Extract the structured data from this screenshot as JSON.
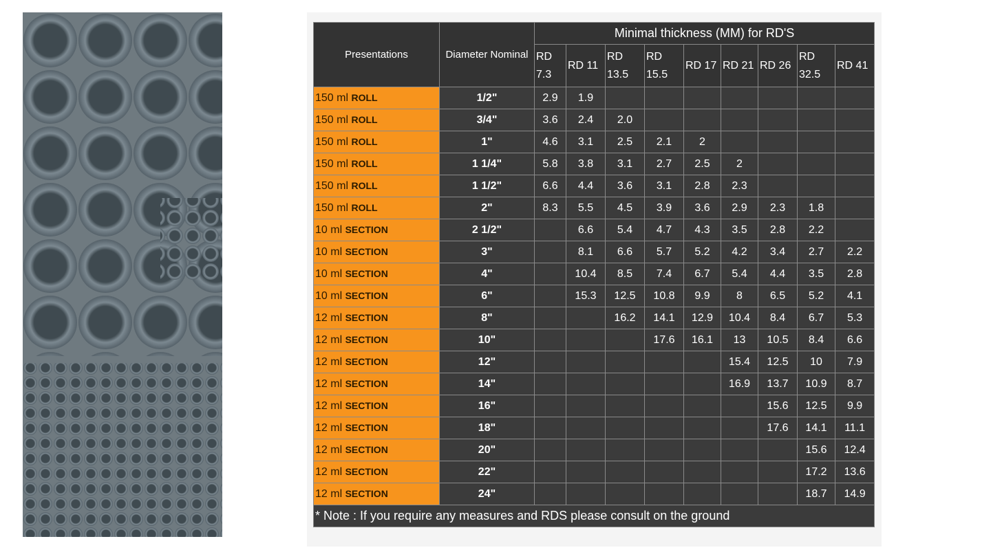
{
  "table": {
    "title": "Minimal thickness (MM) for RD'S",
    "headers": {
      "presentations": "Presentations",
      "diameter": "Diameter Nominal",
      "rd": [
        "RD 7.3",
        "RD 11",
        "RD 13.5",
        "RD 15.5",
        "RD 17",
        "RD 21",
        "RD 26",
        "RD 32.5",
        "RD 41"
      ]
    },
    "rows": [
      {
        "quantity": "150 ml",
        "unit": "ROLL",
        "diameter": "1/2\"",
        "cells": [
          "2.9",
          "1.9",
          null,
          null,
          null,
          null,
          null,
          null,
          null
        ]
      },
      {
        "quantity": "150 ml",
        "unit": "ROLL",
        "diameter": "3/4\"",
        "cells": [
          "3.6",
          "2.4",
          "2.0",
          null,
          null,
          null,
          null,
          null,
          null
        ]
      },
      {
        "quantity": "150 ml",
        "unit": "ROLL",
        "diameter": "1\"",
        "cells": [
          "4.6",
          "3.1",
          "2.5",
          "2.1",
          "2",
          null,
          null,
          null,
          null
        ]
      },
      {
        "quantity": "150 ml",
        "unit": "ROLL",
        "diameter": "1 1/4\"",
        "cells": [
          "5.8",
          "3.8",
          "3.1",
          "2.7",
          "2.5",
          "2",
          null,
          null,
          null
        ]
      },
      {
        "quantity": "150 ml",
        "unit": "ROLL",
        "diameter": "1 1/2\"",
        "cells": [
          "6.6",
          "4.4",
          "3.6",
          "3.1",
          "2.8",
          "2.3",
          null,
          null,
          null
        ]
      },
      {
        "quantity": "150 ml",
        "unit": "ROLL",
        "diameter": "2\"",
        "cells": [
          "8.3",
          "5.5",
          "4.5",
          "3.9",
          "3.6",
          "2.9",
          "2.3",
          "1.8",
          null
        ]
      },
      {
        "quantity": "10 ml",
        "unit": "SECTION",
        "diameter": "2 1/2\"",
        "cells": [
          null,
          "6.6",
          "5.4",
          "4.7",
          "4.3",
          "3.5",
          "2.8",
          "2.2",
          null
        ]
      },
      {
        "quantity": "10 ml",
        "unit": "SECTION",
        "diameter": "3\"",
        "cells": [
          null,
          "8.1",
          "6.6",
          "5.7",
          "5.2",
          "4.2",
          "3.4",
          "2.7",
          "2.2"
        ]
      },
      {
        "quantity": "10 ml",
        "unit": "SECTION",
        "diameter": "4\"",
        "cells": [
          null,
          "10.4",
          "8.5",
          "7.4",
          "6.7",
          "5.4",
          "4.4",
          "3.5",
          "2.8"
        ]
      },
      {
        "quantity": "10 ml",
        "unit": "SECTION",
        "diameter": "6\"",
        "cells": [
          null,
          "15.3",
          "12.5",
          "10.8",
          "9.9",
          "8",
          "6.5",
          "5.2",
          "4.1"
        ]
      },
      {
        "quantity": "12 ml",
        "unit": "SECTION",
        "diameter": "8\"",
        "cells": [
          null,
          null,
          "16.2",
          "14.1",
          "12.9",
          "10.4",
          "8.4",
          "6.7",
          "5.3"
        ]
      },
      {
        "quantity": "12 ml",
        "unit": "SECTION",
        "diameter": "10\"",
        "cells": [
          null,
          null,
          null,
          "17.6",
          "16.1",
          "13",
          "10.5",
          "8.4",
          "6.6"
        ]
      },
      {
        "quantity": "12 ml",
        "unit": "SECTION",
        "diameter": "12\"",
        "cells": [
          null,
          null,
          null,
          null,
          null,
          "15.4",
          "12.5",
          "10",
          "7.9"
        ]
      },
      {
        "quantity": "12 ml",
        "unit": "SECTION",
        "diameter": "14\"",
        "cells": [
          null,
          null,
          null,
          null,
          null,
          "16.9",
          "13.7",
          "10.9",
          "8.7"
        ]
      },
      {
        "quantity": "12 ml",
        "unit": "SECTION",
        "diameter": "16\"",
        "cells": [
          null,
          null,
          null,
          null,
          null,
          null,
          "15.6",
          "12.5",
          "9.9"
        ]
      },
      {
        "quantity": "12 ml",
        "unit": "SECTION",
        "diameter": "18\"",
        "cells": [
          null,
          null,
          null,
          null,
          null,
          null,
          "17.6",
          "14.1",
          "11.1"
        ]
      },
      {
        "quantity": "12 ml",
        "unit": "SECTION",
        "diameter": "20\"",
        "cells": [
          null,
          null,
          null,
          null,
          null,
          null,
          null,
          "15.6",
          "12.4"
        ]
      },
      {
        "quantity": "12 ml",
        "unit": "SECTION",
        "diameter": "22\"",
        "cells": [
          null,
          null,
          null,
          null,
          null,
          null,
          null,
          "17.2",
          "13.6"
        ]
      },
      {
        "quantity": "12 ml",
        "unit": "SECTION",
        "diameter": "24\"",
        "cells": [
          null,
          null,
          null,
          null,
          null,
          null,
          null,
          "18.7",
          "14.9"
        ]
      }
    ],
    "note": "* Note : If you require any measures and RDS please consult on the ground"
  }
}
